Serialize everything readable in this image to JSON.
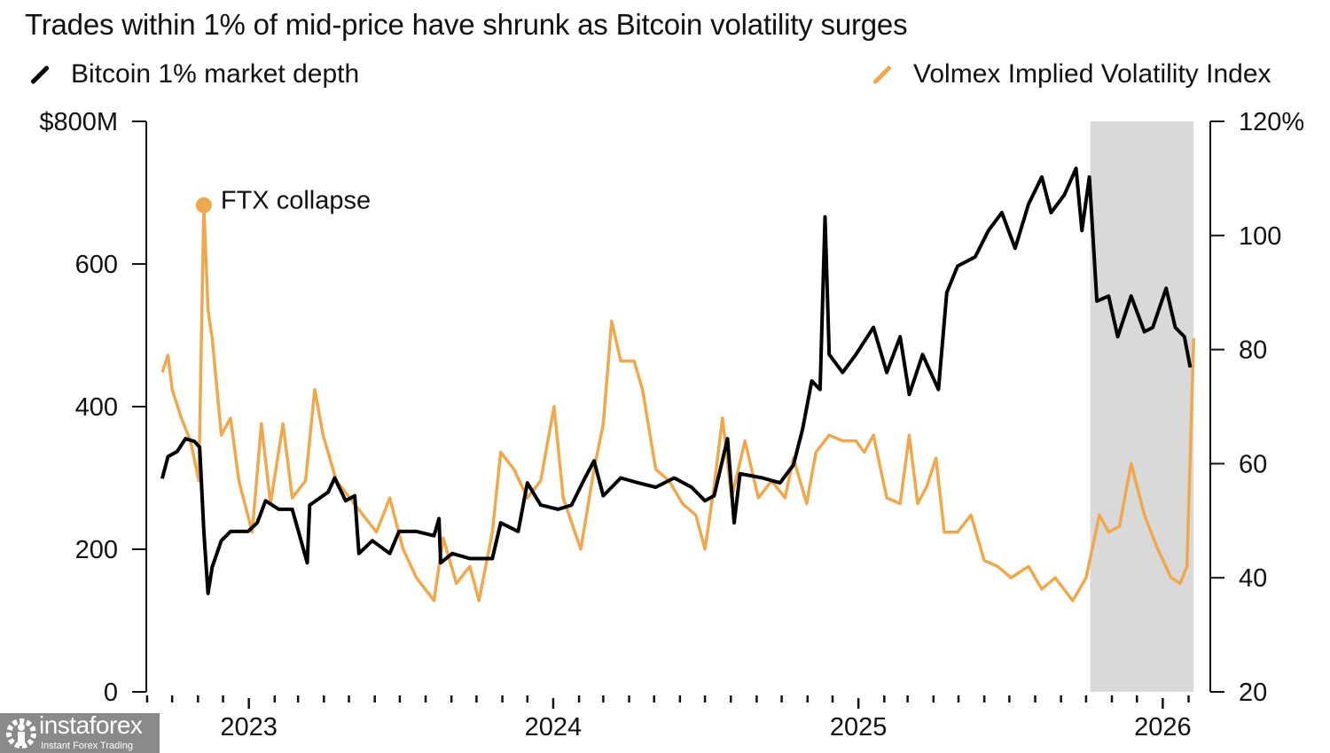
{
  "chart_data": {
    "type": "line",
    "title": "Trades within 1% of mid-price have shrunk as Bitcoin volatility surges",
    "x_axis": {
      "type": "date",
      "range": [
        "2022-08-31",
        "2026-02-27"
      ],
      "tick_labels": [
        "2023",
        "2024",
        "2025",
        "2026"
      ],
      "minor_ticks": "monthly"
    },
    "y_left": {
      "range": [
        0,
        800
      ],
      "ticks": [
        0,
        200,
        400,
        600,
        800
      ],
      "tick_labels": [
        "0",
        "200",
        "400",
        "600",
        "$800M"
      ]
    },
    "y_right": {
      "range": [
        20,
        120
      ],
      "ticks": [
        20,
        40,
        60,
        80,
        100,
        120
      ],
      "tick_labels": [
        "20",
        "40",
        "60",
        "80",
        "100",
        "120%"
      ]
    },
    "grid": false,
    "legend_placement": "top",
    "shaded_period": {
      "start": "2025-10-06",
      "end": "2026-02-07",
      "color": "#d9d9d9"
    },
    "annotations": [
      {
        "text": "FTX collapse",
        "date": "2022-11-08",
        "series": "Volmex Implied Volatility Index",
        "value": 105
      }
    ],
    "series": [
      {
        "name": "Bitcoin 1% market depth",
        "axis": "left",
        "unit": "$M",
        "color": "#000000",
        "points": [
          [
            "2022-09-19",
            299
          ],
          [
            "2022-09-26",
            330
          ],
          [
            "2022-10-07",
            337
          ],
          [
            "2022-10-17",
            355
          ],
          [
            "2022-10-28",
            351
          ],
          [
            "2022-11-03",
            343
          ],
          [
            "2022-11-08",
            225
          ],
          [
            "2022-11-13",
            138
          ],
          [
            "2022-11-18",
            175
          ],
          [
            "2022-11-29",
            212
          ],
          [
            "2022-12-10",
            225
          ],
          [
            "2022-12-31",
            225
          ],
          [
            "2023-01-11",
            237
          ],
          [
            "2023-01-21",
            268
          ],
          [
            "2023-02-06",
            256
          ],
          [
            "2023-02-22",
            256
          ],
          [
            "2023-03-12",
            181
          ],
          [
            "2023-03-15",
            262
          ],
          [
            "2023-04-06",
            280
          ],
          [
            "2023-04-14",
            300
          ],
          [
            "2023-04-27",
            268
          ],
          [
            "2023-05-08",
            275
          ],
          [
            "2023-05-13",
            194
          ],
          [
            "2023-05-29",
            212
          ],
          [
            "2023-06-19",
            194
          ],
          [
            "2023-06-30",
            225
          ],
          [
            "2023-07-21",
            225
          ],
          [
            "2023-08-11",
            219
          ],
          [
            "2023-08-17",
            243
          ],
          [
            "2023-08-19",
            181
          ],
          [
            "2023-09-02",
            194
          ],
          [
            "2023-09-23",
            187
          ],
          [
            "2023-10-20",
            187
          ],
          [
            "2023-10-30",
            237
          ],
          [
            "2023-11-20",
            225
          ],
          [
            "2023-12-01",
            293
          ],
          [
            "2023-12-17",
            262
          ],
          [
            "2024-01-07",
            256
          ],
          [
            "2024-01-23",
            262
          ],
          [
            "2024-02-08",
            300
          ],
          [
            "2024-02-19",
            324
          ],
          [
            "2024-03-01",
            275
          ],
          [
            "2024-03-22",
            300
          ],
          [
            "2024-04-12",
            293
          ],
          [
            "2024-05-03",
            287
          ],
          [
            "2024-05-25",
            300
          ],
          [
            "2024-06-15",
            287
          ],
          [
            "2024-07-01",
            268
          ],
          [
            "2024-07-12",
            275
          ],
          [
            "2024-07-28",
            355
          ],
          [
            "2024-08-05",
            237
          ],
          [
            "2024-08-12",
            306
          ],
          [
            "2024-09-08",
            300
          ],
          [
            "2024-09-29",
            293
          ],
          [
            "2024-10-15",
            318
          ],
          [
            "2024-10-26",
            368
          ],
          [
            "2024-11-06",
            436
          ],
          [
            "2024-11-16",
            424
          ],
          [
            "2024-11-22",
            666
          ],
          [
            "2024-11-27",
            473
          ],
          [
            "2024-12-13",
            448
          ],
          [
            "2024-12-29",
            473
          ],
          [
            "2025-01-19",
            511
          ],
          [
            "2025-02-04",
            448
          ],
          [
            "2025-02-20",
            498
          ],
          [
            "2025-03-03",
            417
          ],
          [
            "2025-03-19",
            473
          ],
          [
            "2025-04-07",
            424
          ],
          [
            "2025-04-17",
            560
          ],
          [
            "2025-04-30",
            597
          ],
          [
            "2025-05-21",
            610
          ],
          [
            "2025-06-06",
            647
          ],
          [
            "2025-06-22",
            672
          ],
          [
            "2025-07-08",
            622
          ],
          [
            "2025-07-24",
            684
          ],
          [
            "2025-08-09",
            722
          ],
          [
            "2025-08-20",
            672
          ],
          [
            "2025-09-05",
            697
          ],
          [
            "2025-09-19",
            734
          ],
          [
            "2025-09-26",
            647
          ],
          [
            "2025-10-05",
            722
          ],
          [
            "2025-10-14",
            548
          ],
          [
            "2025-10-28",
            555
          ],
          [
            "2025-11-08",
            498
          ],
          [
            "2025-11-24",
            555
          ],
          [
            "2025-12-10",
            505
          ],
          [
            "2025-12-20",
            511
          ],
          [
            "2026-01-05",
            566
          ],
          [
            "2026-01-16",
            511
          ],
          [
            "2026-01-27",
            498
          ],
          [
            "2026-02-03",
            455
          ]
        ]
      },
      {
        "name": "Volmex Implied Volatility Index",
        "axis": "right",
        "unit": "%",
        "color": "#f0a84e",
        "points": [
          [
            "2022-09-19",
            76
          ],
          [
            "2022-09-26",
            79
          ],
          [
            "2022-10-01",
            73
          ],
          [
            "2022-10-12",
            68
          ],
          [
            "2022-10-23",
            64
          ],
          [
            "2022-11-02",
            57
          ],
          [
            "2022-11-08",
            105
          ],
          [
            "2022-11-13",
            87
          ],
          [
            "2022-11-18",
            82
          ],
          [
            "2022-11-29",
            65
          ],
          [
            "2022-12-10",
            68
          ],
          [
            "2022-12-20",
            57
          ],
          [
            "2023-01-05",
            48
          ],
          [
            "2023-01-16",
            67
          ],
          [
            "2023-01-27",
            53
          ],
          [
            "2023-02-11",
            67
          ],
          [
            "2023-02-22",
            54
          ],
          [
            "2023-03-10",
            57
          ],
          [
            "2023-03-21",
            73
          ],
          [
            "2023-03-31",
            65
          ],
          [
            "2023-04-16",
            57
          ],
          [
            "2023-05-02",
            54
          ],
          [
            "2023-05-18",
            51
          ],
          [
            "2023-06-03",
            48
          ],
          [
            "2023-06-19",
            54
          ],
          [
            "2023-07-05",
            45
          ],
          [
            "2023-07-21",
            40
          ],
          [
            "2023-08-11",
            36
          ],
          [
            "2023-08-22",
            47
          ],
          [
            "2023-09-07",
            39
          ],
          [
            "2023-09-23",
            42
          ],
          [
            "2023-10-04",
            36
          ],
          [
            "2023-10-20",
            48
          ],
          [
            "2023-10-30",
            62
          ],
          [
            "2023-11-15",
            59
          ],
          [
            "2023-12-01",
            54
          ],
          [
            "2023-12-17",
            57
          ],
          [
            "2024-01-02",
            70
          ],
          [
            "2024-01-13",
            54
          ],
          [
            "2024-02-03",
            45
          ],
          [
            "2024-02-19",
            59
          ],
          [
            "2024-03-01",
            67
          ],
          [
            "2024-03-11",
            85
          ],
          [
            "2024-03-22",
            78
          ],
          [
            "2024-04-07",
            78
          ],
          [
            "2024-04-17",
            73
          ],
          [
            "2024-05-03",
            59
          ],
          [
            "2024-05-19",
            57
          ],
          [
            "2024-06-04",
            53
          ],
          [
            "2024-06-20",
            51
          ],
          [
            "2024-07-01",
            45
          ],
          [
            "2024-07-12",
            56
          ],
          [
            "2024-07-22",
            68
          ],
          [
            "2024-08-02",
            54
          ],
          [
            "2024-08-18",
            64
          ],
          [
            "2024-09-03",
            54
          ],
          [
            "2024-09-19",
            57
          ],
          [
            "2024-10-05",
            54
          ],
          [
            "2024-10-15",
            61
          ],
          [
            "2024-10-31",
            53
          ],
          [
            "2024-11-11",
            62
          ],
          [
            "2024-11-27",
            65
          ],
          [
            "2024-12-13",
            64
          ],
          [
            "2024-12-29",
            64
          ],
          [
            "2025-01-08",
            62
          ],
          [
            "2025-01-19",
            65
          ],
          [
            "2025-02-04",
            54
          ],
          [
            "2025-02-20",
            53
          ],
          [
            "2025-03-03",
            65
          ],
          [
            "2025-03-13",
            53
          ],
          [
            "2025-03-24",
            56
          ],
          [
            "2025-04-04",
            61
          ],
          [
            "2025-04-14",
            48
          ],
          [
            "2025-04-30",
            48
          ],
          [
            "2025-05-16",
            51
          ],
          [
            "2025-06-01",
            43
          ],
          [
            "2025-06-17",
            42
          ],
          [
            "2025-07-03",
            40
          ],
          [
            "2025-07-24",
            42
          ],
          [
            "2025-08-09",
            38
          ],
          [
            "2025-08-25",
            40
          ],
          [
            "2025-09-15",
            36
          ],
          [
            "2025-10-01",
            40
          ],
          [
            "2025-10-17",
            51
          ],
          [
            "2025-10-28",
            48
          ],
          [
            "2025-11-10",
            49
          ],
          [
            "2025-11-24",
            60
          ],
          [
            "2025-12-10",
            51
          ],
          [
            "2025-12-26",
            45
          ],
          [
            "2026-01-11",
            40
          ],
          [
            "2026-01-22",
            39
          ],
          [
            "2026-01-30",
            42
          ],
          [
            "2026-02-07",
            82
          ]
        ]
      }
    ]
  },
  "legend": {
    "left_label": "Bitcoin 1% market depth",
    "right_label": "Volmex Implied Volatility Index"
  },
  "watermark": {
    "brand": "instaforex",
    "tagline": "Instant Forex Trading",
    "icon": "gear-person-icon"
  }
}
